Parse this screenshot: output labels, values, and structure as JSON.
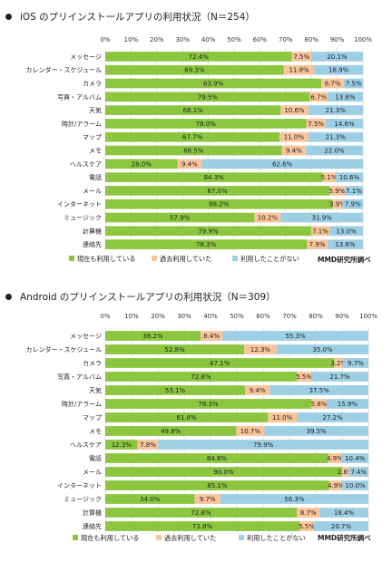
{
  "chart_data": [
    {
      "type": "bar",
      "orientation": "horizontal",
      "stacked": true,
      "title": "iOS のプリインストールアプリの利用状況（N＝254）",
      "categories": [
        "メッセージ",
        "カレンダー・スケジュール",
        "カメラ",
        "写真・アルバム",
        "天気",
        "時計/アラーム",
        "マップ",
        "メモ",
        "ヘルスケア",
        "電話",
        "メール",
        "インターネット",
        "ミュージック",
        "計算機",
        "連絡先"
      ],
      "series": [
        {
          "name": "現在も利用している",
          "color": "#8cc63f",
          "values": [
            72.4,
            69.3,
            83.9,
            79.5,
            68.1,
            78.0,
            67.7,
            68.5,
            28.0,
            84.3,
            87.0,
            88.2,
            57.9,
            79.9,
            78.3
          ]
        },
        {
          "name": "過去利用していた",
          "color": "#f9c49a",
          "values": [
            7.5,
            11.8,
            8.7,
            6.7,
            10.6,
            7.5,
            11.0,
            9.4,
            9.4,
            5.1,
            5.9,
            3.9,
            10.2,
            7.1,
            7.9
          ]
        },
        {
          "name": "利用したことがない",
          "color": "#9dcfe4",
          "values": [
            20.1,
            18.9,
            7.5,
            13.8,
            21.3,
            14.6,
            21.3,
            22.0,
            62.6,
            10.6,
            7.1,
            7.9,
            31.9,
            13.0,
            13.8
          ]
        }
      ],
      "xticks": [
        "0%",
        "10%",
        "20%",
        "30%",
        "40%",
        "50%",
        "60%",
        "70%",
        "80%",
        "90%",
        "100%"
      ],
      "xlim": [
        0,
        100
      ],
      "legend_position": "bottom",
      "source": "MMD研究所調べ"
    },
    {
      "type": "bar",
      "orientation": "horizontal",
      "stacked": true,
      "title": "Android のプリインストールアプリの利用状況（N＝309）",
      "categories": [
        "メッセージ",
        "カレンダー・スケジュール",
        "カメラ",
        "写真・アルバム",
        "天気",
        "時計/アラーム",
        "マップ",
        "メモ",
        "ヘルスケア",
        "電話",
        "メール",
        "インターネット",
        "ミュージック",
        "計算機",
        "連絡先"
      ],
      "series": [
        {
          "name": "現在も利用している",
          "color": "#8cc63f",
          "values": [
            36.2,
            52.8,
            87.1,
            72.8,
            53.1,
            78.3,
            61.8,
            49.8,
            12.3,
            84.8,
            90.0,
            85.1,
            34.0,
            72.8,
            73.8
          ]
        },
        {
          "name": "過去利用していた",
          "color": "#f9c49a",
          "values": [
            8.4,
            12.3,
            3.2,
            5.5,
            9.4,
            5.8,
            11.0,
            10.7,
            7.8,
            4.9,
            2.6,
            4.9,
            9.7,
            8.7,
            5.5
          ]
        },
        {
          "name": "利用したことがない",
          "color": "#9dcfe4",
          "values": [
            55.3,
            35.0,
            9.7,
            21.7,
            37.5,
            15.9,
            27.2,
            39.5,
            79.9,
            10.4,
            7.4,
            10.0,
            56.3,
            18.4,
            20.7
          ]
        }
      ],
      "xticks": [
        "0%",
        "10%",
        "20%",
        "30%",
        "40%",
        "50%",
        "60%",
        "70%",
        "80%",
        "90%",
        "100%"
      ],
      "xlim": [
        0,
        100
      ],
      "legend_position": "bottom",
      "source": "MMD研究所調べ"
    }
  ]
}
